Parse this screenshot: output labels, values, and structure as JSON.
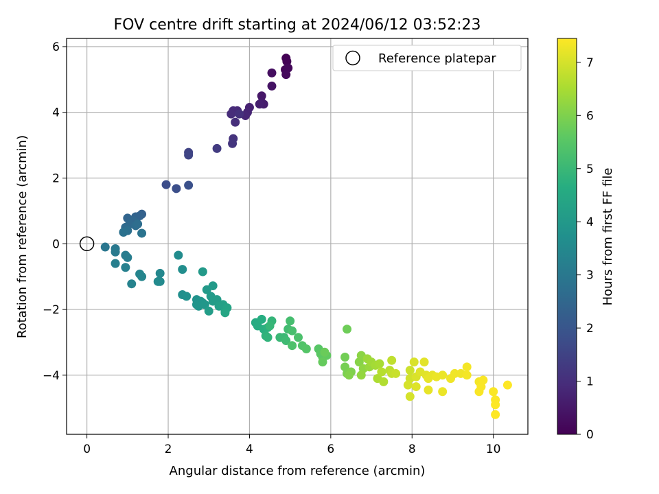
{
  "chart_data": {
    "type": "scatter",
    "title": "FOV centre drift starting at 2024/06/12 03:52:23",
    "xlabel": "Angular distance from reference (arcmin)",
    "ylabel": "Rotation from reference (arcmin)",
    "xlim": [
      -0.5,
      10.85
    ],
    "ylim": [
      -5.8,
      6.25
    ],
    "xticks": [
      0,
      2,
      4,
      6,
      8,
      10
    ],
    "yticks": [
      -4,
      -2,
      0,
      2,
      4,
      6
    ],
    "grid": true,
    "legend": {
      "position": "top-right",
      "label": "Reference platepar"
    },
    "reference_point": {
      "x": 0,
      "y": 0
    },
    "colormap": "viridis",
    "colorbar": {
      "label": "Hours from first FF file",
      "range": [
        0,
        7.45
      ],
      "ticks": [
        0,
        1,
        2,
        3,
        4,
        5,
        6,
        7
      ]
    },
    "points": [
      [
        4.9,
        5.65,
        0.02
      ],
      [
        4.92,
        5.55,
        0.05
      ],
      [
        4.88,
        5.3,
        0.1
      ],
      [
        4.95,
        5.35,
        0.15
      ],
      [
        4.9,
        5.15,
        0.2
      ],
      [
        4.55,
        5.2,
        0.3
      ],
      [
        4.55,
        4.8,
        0.4
      ],
      [
        4.3,
        4.5,
        0.5
      ],
      [
        4.3,
        4.3,
        0.55
      ],
      [
        4.35,
        4.25,
        0.6
      ],
      [
        4.25,
        4.25,
        0.65
      ],
      [
        4.0,
        4.15,
        0.7
      ],
      [
        3.95,
        4.0,
        0.75
      ],
      [
        3.9,
        3.9,
        0.8
      ],
      [
        3.7,
        4.05,
        0.85
      ],
      [
        3.6,
        4.05,
        0.9
      ],
      [
        3.55,
        3.95,
        0.95
      ],
      [
        3.65,
        3.7,
        1.0
      ],
      [
        3.75,
        3.95,
        1.05
      ],
      [
        3.6,
        3.2,
        1.1
      ],
      [
        3.58,
        3.05,
        1.15
      ],
      [
        3.2,
        2.9,
        1.3
      ],
      [
        2.5,
        2.78,
        1.5
      ],
      [
        2.5,
        2.7,
        1.55
      ],
      [
        1.95,
        1.8,
        1.75
      ],
      [
        2.2,
        1.68,
        1.8
      ],
      [
        2.5,
        1.78,
        1.85
      ],
      [
        1.35,
        0.9,
        2.3
      ],
      [
        1.3,
        0.85,
        2.35
      ],
      [
        1.2,
        0.82,
        2.4
      ],
      [
        1.0,
        0.78,
        2.45
      ],
      [
        1.15,
        0.7,
        2.5
      ],
      [
        1.05,
        0.6,
        2.55
      ],
      [
        0.95,
        0.5,
        2.6
      ],
      [
        1.2,
        0.55,
        2.65
      ],
      [
        1.25,
        0.6,
        2.7
      ],
      [
        1.0,
        0.4,
        2.75
      ],
      [
        0.9,
        0.35,
        2.8
      ],
      [
        1.35,
        0.32,
        2.85
      ],
      [
        0.45,
        -0.1,
        2.95
      ],
      [
        0.7,
        -0.15,
        3.0
      ],
      [
        0.7,
        -0.25,
        3.05
      ],
      [
        0.95,
        -0.35,
        3.1
      ],
      [
        1.0,
        -0.42,
        3.15
      ],
      [
        0.7,
        -0.6,
        3.2
      ],
      [
        0.95,
        -0.72,
        3.25
      ],
      [
        1.1,
        -1.22,
        3.3
      ],
      [
        1.3,
        -0.92,
        3.35
      ],
      [
        1.35,
        -1.0,
        3.4
      ],
      [
        1.8,
        -0.9,
        3.45
      ],
      [
        1.8,
        -1.15,
        3.5
      ],
      [
        1.75,
        -1.15,
        3.55
      ],
      [
        2.25,
        -0.35,
        3.6
      ],
      [
        2.35,
        -0.78,
        3.65
      ],
      [
        2.35,
        -1.55,
        3.7
      ],
      [
        2.45,
        -1.6,
        3.75
      ],
      [
        2.7,
        -1.7,
        3.8
      ],
      [
        2.7,
        -1.85,
        3.85
      ],
      [
        2.8,
        -1.75,
        3.85
      ],
      [
        2.85,
        -1.8,
        3.9
      ],
      [
        2.75,
        -1.9,
        3.9
      ],
      [
        2.9,
        -1.85,
        3.95
      ],
      [
        2.85,
        -0.85,
        4.0
      ],
      [
        2.95,
        -1.4,
        4.0
      ],
      [
        3.1,
        -1.28,
        4.05
      ],
      [
        3.05,
        -1.6,
        4.05
      ],
      [
        3.1,
        -1.75,
        4.1
      ],
      [
        3.2,
        -1.7,
        4.1
      ],
      [
        3.0,
        -2.05,
        4.15
      ],
      [
        3.25,
        -1.9,
        4.2
      ],
      [
        3.35,
        -1.85,
        4.25
      ],
      [
        3.4,
        -2.05,
        4.3
      ],
      [
        3.45,
        -1.95,
        4.35
      ],
      [
        3.4,
        -2.1,
        4.4
      ],
      [
        4.15,
        -2.4,
        4.55
      ],
      [
        4.2,
        -2.5,
        4.6
      ],
      [
        4.3,
        -2.3,
        4.65
      ],
      [
        4.35,
        -2.6,
        4.7
      ],
      [
        4.45,
        -2.55,
        4.75
      ],
      [
        4.4,
        -2.8,
        4.8
      ],
      [
        4.45,
        -2.85,
        4.85
      ],
      [
        4.55,
        -2.35,
        4.9
      ],
      [
        4.5,
        -2.5,
        4.95
      ],
      [
        4.75,
        -2.85,
        5.0
      ],
      [
        4.85,
        -2.85,
        5.05
      ],
      [
        4.9,
        -2.95,
        5.1
      ],
      [
        4.95,
        -2.6,
        5.15
      ],
      [
        5.0,
        -2.35,
        5.2
      ],
      [
        5.05,
        -2.65,
        5.25
      ],
      [
        5.2,
        -2.85,
        5.3
      ],
      [
        5.05,
        -3.1,
        5.35
      ],
      [
        5.3,
        -3.1,
        5.4
      ],
      [
        5.4,
        -3.2,
        5.45
      ],
      [
        5.7,
        -3.2,
        5.5
      ],
      [
        5.75,
        -3.35,
        5.55
      ],
      [
        5.8,
        -3.45,
        5.6
      ],
      [
        5.9,
        -3.4,
        5.65
      ],
      [
        5.8,
        -3.6,
        5.7
      ],
      [
        5.85,
        -3.3,
        5.75
      ],
      [
        6.4,
        -2.6,
        5.8
      ],
      [
        6.35,
        -3.45,
        5.85
      ],
      [
        6.35,
        -3.75,
        5.9
      ],
      [
        6.4,
        -3.95,
        5.95
      ],
      [
        6.5,
        -3.9,
        6.0
      ],
      [
        6.45,
        -4.0,
        6.05
      ],
      [
        6.7,
        -3.6,
        6.1
      ],
      [
        6.75,
        -3.4,
        6.15
      ],
      [
        6.8,
        -3.8,
        6.2
      ],
      [
        6.75,
        -4.0,
        6.25
      ],
      [
        6.95,
        -3.75,
        6.3
      ],
      [
        6.9,
        -3.5,
        6.35
      ],
      [
        7.0,
        -3.6,
        6.4
      ],
      [
        7.1,
        -3.7,
        6.45
      ],
      [
        7.2,
        -3.65,
        6.5
      ],
      [
        7.15,
        -4.1,
        6.55
      ],
      [
        7.3,
        -4.2,
        6.6
      ],
      [
        7.25,
        -3.9,
        6.65
      ],
      [
        7.45,
        -3.85,
        6.7
      ],
      [
        7.5,
        -3.55,
        6.75
      ],
      [
        7.5,
        -3.95,
        6.8
      ],
      [
        7.6,
        -3.95,
        6.85
      ],
      [
        7.95,
        -3.85,
        6.9
      ],
      [
        7.95,
        -4.1,
        6.95
      ],
      [
        7.9,
        -4.3,
        7.0
      ],
      [
        7.95,
        -4.65,
        7.0
      ],
      [
        8.05,
        -3.6,
        7.05
      ],
      [
        8.1,
        -4.05,
        7.05
      ],
      [
        8.1,
        -4.35,
        7.1
      ],
      [
        8.2,
        -3.9,
        7.1
      ],
      [
        8.3,
        -3.6,
        7.15
      ],
      [
        8.35,
        -4.0,
        7.15
      ],
      [
        8.4,
        -4.1,
        7.2
      ],
      [
        8.4,
        -4.45,
        7.2
      ],
      [
        8.5,
        -4.0,
        7.2
      ],
      [
        8.6,
        -4.05,
        7.25
      ],
      [
        8.75,
        -4.0,
        7.25
      ],
      [
        8.75,
        -4.5,
        7.25
      ],
      [
        8.95,
        -4.1,
        7.3
      ],
      [
        9.05,
        -3.95,
        7.3
      ],
      [
        9.2,
        -3.95,
        7.3
      ],
      [
        9.35,
        -4.0,
        7.35
      ],
      [
        9.35,
        -3.75,
        7.35
      ],
      [
        9.65,
        -4.2,
        7.35
      ],
      [
        9.7,
        -4.35,
        7.4
      ],
      [
        9.75,
        -4.15,
        7.4
      ],
      [
        9.65,
        -4.5,
        7.4
      ],
      [
        10.0,
        -4.5,
        7.42
      ],
      [
        10.05,
        -4.75,
        7.43
      ],
      [
        10.05,
        -4.9,
        7.44
      ],
      [
        10.05,
        -5.2,
        7.45
      ],
      [
        10.35,
        -4.3,
        7.45
      ]
    ]
  }
}
